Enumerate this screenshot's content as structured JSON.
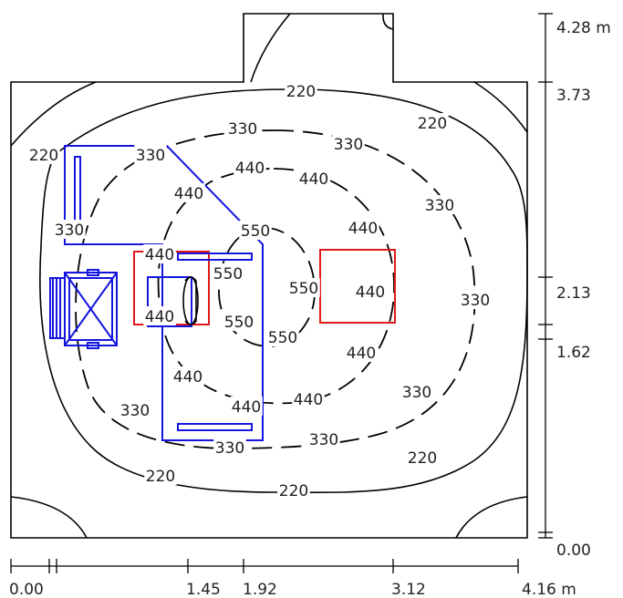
{
  "iso_labels": {
    "l220": "220",
    "l330": "330",
    "l440": "440",
    "l550": "550"
  },
  "dimensions": {
    "x_ticks": [
      "0.00",
      "1.45",
      "1.92",
      "3.12",
      "4.16 m"
    ],
    "y_ticks": [
      "4.28 m",
      "3.73",
      "2.13",
      "1.62",
      "0.00"
    ]
  },
  "colors": {
    "furniture": "#1515e0",
    "luminaire": "#e01818",
    "contour": "#000000"
  }
}
